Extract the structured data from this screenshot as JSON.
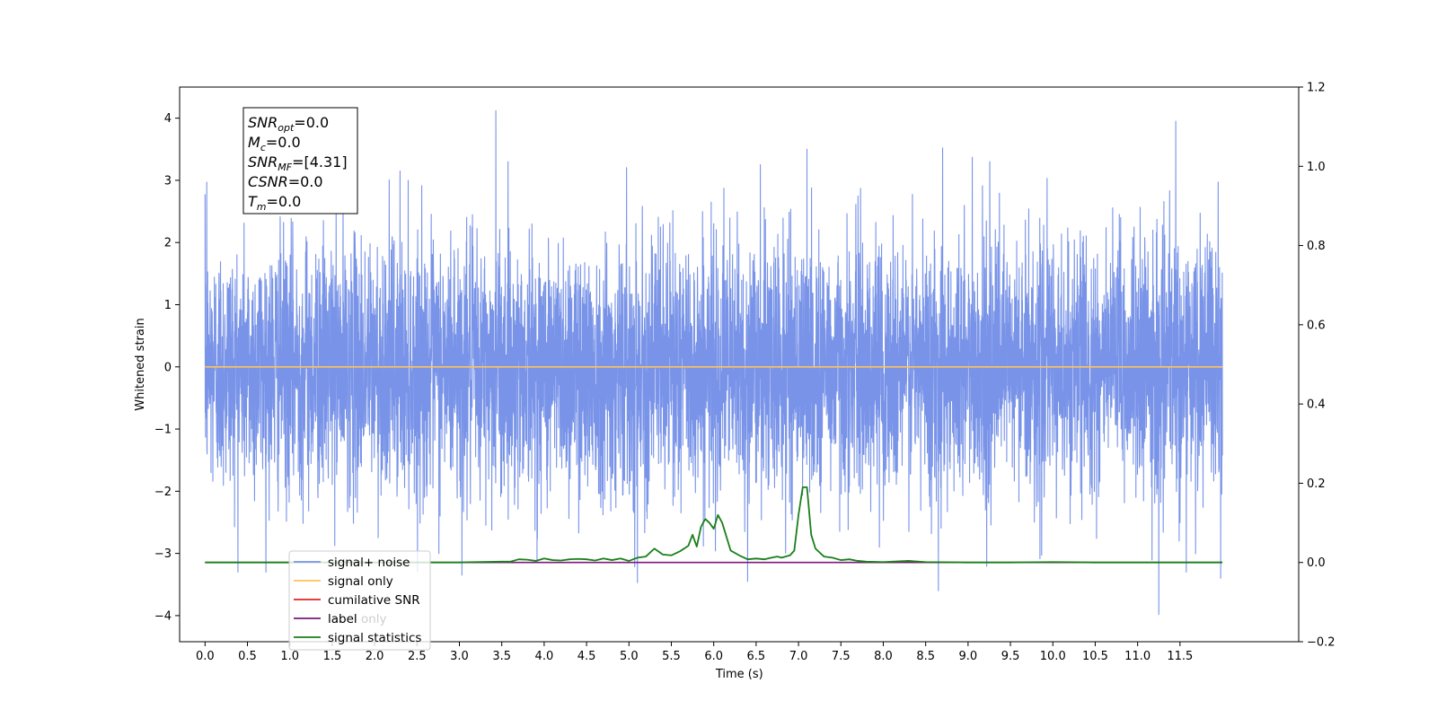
{
  "chart_data": {
    "type": "line",
    "xlabel": "Time (s)",
    "ylabel": "Whitened strain",
    "xlim": [
      -0.3,
      12.9
    ],
    "ylim": [
      -4.42,
      4.5
    ],
    "y2lim": [
      -0.2,
      1.2
    ],
    "x_tick_labels": [
      "0.0",
      "0.5",
      "1.0",
      "1.5",
      "2.0",
      "2.5",
      "3.0",
      "3.5",
      "4.0",
      "4.5",
      "5.0",
      "5.5",
      "6.0",
      "6.5",
      "7.0",
      "7.5",
      "8.0",
      "8.5",
      "9.0",
      "9.5",
      "10.0",
      "10.5",
      "11.0",
      "11.5"
    ],
    "x_ticks": [
      0,
      0.5,
      1,
      1.5,
      2,
      2.5,
      3,
      3.5,
      4,
      4.5,
      5,
      5.5,
      6,
      6.5,
      7,
      7.5,
      8,
      8.5,
      9,
      9.5,
      10,
      10.5,
      11,
      11.5
    ],
    "y_tick_labels": [
      "−4",
      "−3",
      "−2",
      "−1",
      "0",
      "1",
      "2",
      "3",
      "4"
    ],
    "y_ticks": [
      -4,
      -3,
      -2,
      -1,
      0,
      1,
      2,
      3,
      4
    ],
    "y2_tick_labels": [
      "−0.2",
      "0.0",
      "0.2",
      "0.4",
      "0.6",
      "0.8",
      "1.0",
      "1.2"
    ],
    "y2_ticks": [
      -0.2,
      0,
      0.2,
      0.4,
      0.6,
      0.8,
      1.0,
      1.2
    ],
    "grid": false,
    "legend_position": "lower-left",
    "legend": [
      {
        "label": "signal+ noise",
        "color": "#7893e8"
      },
      {
        "label": "signal only",
        "color": "#ffc25a"
      },
      {
        "label": "cumilative SNR",
        "color": "#e82020"
      },
      {
        "label": "label",
        "color": "#7a1b78"
      },
      {
        "label": "signal statistics",
        "color": "#1a7f1a"
      }
    ],
    "legend_hidden_text": [
      "label only"
    ],
    "series": [
      {
        "name": "signal+ noise",
        "axis": "left",
        "kind": "noise",
        "t_range": [
          0,
          12
        ],
        "amplitude_std": 1.0,
        "peaks": [
          [
            3.43,
            4.12
          ],
          [
            11.45,
            3.95
          ],
          [
            0.02,
            2.97
          ],
          [
            7.1,
            3.5
          ],
          [
            8.7,
            3.52
          ],
          [
            9.05,
            3.37
          ],
          [
            2.3,
            3.15
          ],
          [
            6.55,
            3.25
          ],
          [
            11.25,
            -3.98
          ],
          [
            8.65,
            -3.6
          ],
          [
            3.03,
            -3.35
          ],
          [
            5.1,
            -3.47
          ],
          [
            6.4,
            -3.45
          ],
          [
            11.98,
            -3.4
          ]
        ]
      },
      {
        "name": "signal only",
        "axis": "left",
        "x": [
          0,
          12
        ],
        "y": [
          0,
          0
        ]
      },
      {
        "name": "label",
        "axis": "right",
        "x": [
          0,
          12
        ],
        "y": [
          0,
          0
        ]
      },
      {
        "name": "signal statistics",
        "axis": "right",
        "x": [
          0,
          0.5,
          1,
          1.5,
          2,
          2.5,
          3,
          3.2,
          3.5,
          3.6,
          3.7,
          3.8,
          3.9,
          4.0,
          4.1,
          4.2,
          4.3,
          4.4,
          4.5,
          4.6,
          4.7,
          4.8,
          4.9,
          5.0,
          5.1,
          5.2,
          5.3,
          5.4,
          5.5,
          5.6,
          5.7,
          5.75,
          5.8,
          5.85,
          5.9,
          5.95,
          6.0,
          6.05,
          6.1,
          6.2,
          6.3,
          6.4,
          6.5,
          6.6,
          6.7,
          6.75,
          6.8,
          6.9,
          6.95,
          7.0,
          7.05,
          7.1,
          7.15,
          7.2,
          7.3,
          7.4,
          7.5,
          7.6,
          7.7,
          7.8,
          8.0,
          8.3,
          8.5,
          9.0,
          9.5,
          10.0,
          10.5,
          11.0,
          11.5,
          12.0
        ],
        "y": [
          0,
          0,
          0,
          0,
          0,
          0,
          0,
          0.001,
          0.002,
          0.002,
          0.008,
          0.007,
          0.004,
          0.01,
          0.006,
          0.005,
          0.008,
          0.009,
          0.008,
          0.005,
          0.01,
          0.006,
          0.01,
          0.004,
          0.012,
          0.015,
          0.035,
          0.02,
          0.018,
          0.028,
          0.042,
          0.07,
          0.04,
          0.09,
          0.11,
          0.1,
          0.085,
          0.12,
          0.1,
          0.03,
          0.018,
          0.008,
          0.01,
          0.008,
          0.013,
          0.015,
          0.012,
          0.018,
          0.03,
          0.12,
          0.19,
          0.19,
          0.07,
          0.035,
          0.015,
          0.012,
          0.006,
          0.008,
          0.004,
          0.002,
          0.001,
          0.004,
          0.001,
          0,
          0,
          0.001,
          0,
          0,
          0,
          0
        ]
      }
    ]
  },
  "info_box": {
    "lines": [
      {
        "sym": "SNR",
        "sub": "opt",
        "rest": "=0.0"
      },
      {
        "sym": "M",
        "sub": "c",
        "rest": "=0.0"
      },
      {
        "sym": "SNR",
        "sub": "MF",
        "rest": "=[4.31]"
      },
      {
        "sym": "CSNR",
        "sub": "",
        "rest": "=0.0"
      },
      {
        "sym": "T",
        "sub": "m",
        "rest": "=0.0"
      }
    ]
  }
}
